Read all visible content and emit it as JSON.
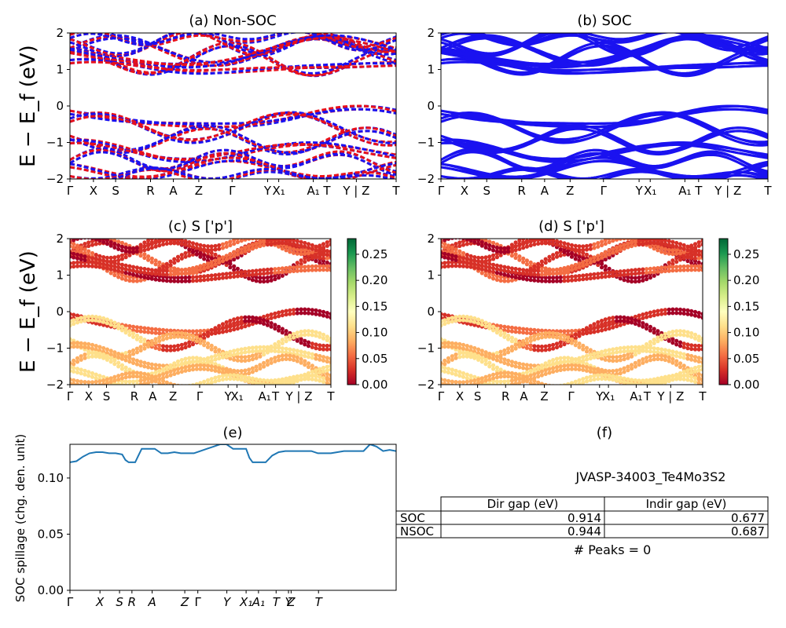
{
  "figure": {
    "ylabel_top": "E − E_f (eV)",
    "ylabel_mid": "E − E_f (eV)"
  },
  "colors": {
    "red": "#e8101a",
    "blue": "#1a12f0",
    "line": "#1f77b4"
  },
  "chart_data": [
    {
      "id": "a",
      "type": "line",
      "title": "(a) Non-SOC",
      "ylim": [
        -2,
        2
      ],
      "yticks": [
        "2",
        "1",
        "0",
        "−1",
        "−2"
      ],
      "kpath_labels": [
        "Γ",
        "X",
        "S",
        "R",
        "A",
        "Z",
        "Γ",
        "Y",
        "X₁",
        "A₁",
        "T",
        "Y | Z",
        "T"
      ],
      "kpath_positions": [
        0,
        0.072,
        0.14,
        0.247,
        0.317,
        0.395,
        0.497,
        0.606,
        0.64,
        0.746,
        0.788,
        0.878,
        1.0
      ],
      "series": [
        {
          "color": "red"
        },
        {
          "color": "blue"
        }
      ],
      "bands": [
        {
          "base": 1.5,
          "amp": 0.35,
          "freq": 3.1,
          "phase": 0.2
        },
        {
          "base": 1.25,
          "amp": 0.3,
          "freq": 4.2,
          "phase": 1.3
        },
        {
          "base": 1.7,
          "amp": 0.25,
          "freq": 5.0,
          "phase": 2.1
        },
        {
          "base": 1.05,
          "amp": 0.2,
          "freq": 2.5,
          "phase": 0.8
        },
        {
          "base": 1.85,
          "amp": 0.15,
          "freq": 6.1,
          "phase": 0.4
        },
        {
          "base": 1.45,
          "amp": 0.4,
          "freq": 2.0,
          "phase": 2.7
        },
        {
          "base": -0.35,
          "amp": 0.3,
          "freq": 2.2,
          "phase": 1.9
        },
        {
          "base": -0.6,
          "amp": 0.35,
          "freq": 3.3,
          "phase": 0.6
        },
        {
          "base": -0.95,
          "amp": 0.3,
          "freq": 4.1,
          "phase": 2.3
        },
        {
          "base": -1.25,
          "amp": 0.3,
          "freq": 2.8,
          "phase": 1.1
        },
        {
          "base": -1.5,
          "amp": 0.25,
          "freq": 5.3,
          "phase": 0.1
        },
        {
          "base": -1.75,
          "amp": 0.2,
          "freq": 3.7,
          "phase": 1.7
        },
        {
          "base": -1.9,
          "amp": 0.12,
          "freq": 6.0,
          "phase": 2.9
        }
      ]
    },
    {
      "id": "b",
      "type": "line",
      "title": "(b) SOC",
      "ylim": [
        -2,
        2
      ],
      "yticks": [
        "2",
        "1",
        "0",
        "−1",
        "−2"
      ],
      "kpath_labels": [
        "Γ",
        "X",
        "S",
        "R",
        "A",
        "Z",
        "Γ",
        "Y",
        "X₁",
        "A₁",
        "T",
        "Y | Z",
        "T"
      ],
      "kpath_positions": [
        0,
        0.072,
        0.14,
        0.247,
        0.317,
        0.395,
        0.497,
        0.606,
        0.64,
        0.746,
        0.788,
        0.878,
        1.0
      ],
      "series": [
        {
          "color": "blue"
        }
      ],
      "bands": [
        {
          "base": 1.5,
          "amp": 0.35,
          "freq": 3.1,
          "phase": 0.2
        },
        {
          "base": 1.25,
          "amp": 0.3,
          "freq": 4.2,
          "phase": 1.3
        },
        {
          "base": 1.7,
          "amp": 0.25,
          "freq": 5.0,
          "phase": 2.1
        },
        {
          "base": 1.05,
          "amp": 0.2,
          "freq": 2.5,
          "phase": 0.8
        },
        {
          "base": 1.85,
          "amp": 0.15,
          "freq": 6.1,
          "phase": 0.4
        },
        {
          "base": 1.45,
          "amp": 0.4,
          "freq": 2.0,
          "phase": 2.7
        },
        {
          "base": -0.35,
          "amp": 0.3,
          "freq": 2.2,
          "phase": 1.9
        },
        {
          "base": -0.6,
          "amp": 0.35,
          "freq": 3.3,
          "phase": 0.6
        },
        {
          "base": -0.95,
          "amp": 0.3,
          "freq": 4.1,
          "phase": 2.3
        },
        {
          "base": -1.25,
          "amp": 0.3,
          "freq": 2.8,
          "phase": 1.1
        },
        {
          "base": -1.5,
          "amp": 0.25,
          "freq": 5.3,
          "phase": 0.1
        },
        {
          "base": -1.75,
          "amp": 0.2,
          "freq": 3.7,
          "phase": 1.7
        },
        {
          "base": -1.9,
          "amp": 0.12,
          "freq": 6.0,
          "phase": 2.9
        }
      ]
    },
    {
      "id": "c",
      "type": "scatter",
      "title": "(c)  S ['p']",
      "ylim": [
        -2,
        2
      ],
      "yticks": [
        "2",
        "1",
        "0",
        "−1",
        "−2"
      ],
      "kpath_labels": [
        "Γ",
        "X",
        "S",
        "R",
        "A",
        "Z",
        "Γ",
        "Y",
        "X₁",
        "A₁",
        "T",
        "Y | Z",
        "T"
      ],
      "kpath_positions": [
        0,
        0.072,
        0.14,
        0.247,
        0.317,
        0.395,
        0.497,
        0.606,
        0.64,
        0.746,
        0.788,
        0.878,
        1.0
      ],
      "colorbar": {
        "min": 0.0,
        "max": 0.28,
        "ticks": [
          "0.25",
          "0.20",
          "0.15",
          "0.10",
          "0.05",
          "0.00"
        ],
        "tick_values": [
          0.25,
          0.2,
          0.15,
          0.1,
          0.05,
          0.0
        ],
        "colormap": "RdYlGn"
      }
    },
    {
      "id": "d",
      "type": "scatter",
      "title": "(d) S ['p']",
      "ylim": [
        -2,
        2
      ],
      "yticks": [
        "2",
        "1",
        "0",
        "−1",
        "−2"
      ],
      "kpath_labels": [
        "Γ",
        "X",
        "S",
        "R",
        "A",
        "Z",
        "Γ",
        "Y",
        "X₁",
        "A₁",
        "T",
        "Y | Z",
        "T"
      ],
      "kpath_positions": [
        0,
        0.072,
        0.14,
        0.247,
        0.317,
        0.395,
        0.497,
        0.606,
        0.64,
        0.746,
        0.788,
        0.878,
        1.0
      ],
      "colorbar": {
        "min": 0.0,
        "max": 0.28,
        "ticks": [
          "0.25",
          "0.20",
          "0.15",
          "0.10",
          "0.05",
          "0.00"
        ],
        "tick_values": [
          0.25,
          0.2,
          0.15,
          0.1,
          0.05,
          0.0
        ],
        "colormap": "RdYlGn"
      }
    },
    {
      "id": "e",
      "type": "line",
      "title": "(e)",
      "ylabel": "SOC spillage (chg. den. unit)",
      "ylim": [
        0.0,
        0.13
      ],
      "yticks": [
        "0.10",
        "0.05",
        "0.00"
      ],
      "ytick_values": [
        0.1,
        0.05,
        0.0
      ],
      "xticks": [
        "Γ",
        "X",
        "S",
        "R",
        "A",
        "Z",
        "Γ",
        "Y",
        "X₁",
        "A₁",
        "T",
        "Y",
        "Z",
        "T"
      ],
      "xtick_positions": [
        0,
        0.092,
        0.152,
        0.19,
        0.252,
        0.352,
        0.392,
        0.481,
        0.54,
        0.578,
        0.632,
        0.67,
        0.678,
        0.762
      ],
      "x": [
        0.0,
        0.02,
        0.04,
        0.06,
        0.08,
        0.1,
        0.12,
        0.14,
        0.16,
        0.17,
        0.18,
        0.19,
        0.2,
        0.21,
        0.22,
        0.24,
        0.26,
        0.28,
        0.3,
        0.32,
        0.34,
        0.36,
        0.38,
        0.4,
        0.42,
        0.44,
        0.46,
        0.48,
        0.49,
        0.5,
        0.52,
        0.54,
        0.55,
        0.56,
        0.58,
        0.6,
        0.62,
        0.64,
        0.66,
        0.68,
        0.7,
        0.72,
        0.74,
        0.76,
        0.78,
        0.8,
        0.82,
        0.84,
        0.86,
        0.88,
        0.9,
        0.92,
        0.94,
        0.96,
        0.98,
        1.0
      ],
      "y": [
        0.114,
        0.115,
        0.119,
        0.122,
        0.123,
        0.123,
        0.122,
        0.122,
        0.121,
        0.116,
        0.114,
        0.114,
        0.114,
        0.12,
        0.126,
        0.126,
        0.126,
        0.122,
        0.122,
        0.123,
        0.122,
        0.122,
        0.122,
        0.124,
        0.126,
        0.128,
        0.13,
        0.13,
        0.128,
        0.126,
        0.126,
        0.126,
        0.118,
        0.114,
        0.114,
        0.114,
        0.12,
        0.123,
        0.124,
        0.124,
        0.124,
        0.124,
        0.124,
        0.122,
        0.122,
        0.122,
        0.123,
        0.124,
        0.124,
        0.124,
        0.124,
        0.13,
        0.128,
        0.124,
        0.125,
        0.124
      ]
    }
  ],
  "panel_f": {
    "title": "(f)",
    "material": "JVASP-34003_Te4Mo3S2",
    "table": {
      "headers": [
        "Dir gap (eV)",
        "Indir gap (eV)"
      ],
      "rows": [
        {
          "label": "SOC",
          "dir": "0.914",
          "indir": "0.677"
        },
        {
          "label": "NSOC",
          "dir": "0.944",
          "indir": "0.687"
        }
      ]
    },
    "peaks": "# Peaks = 0"
  }
}
